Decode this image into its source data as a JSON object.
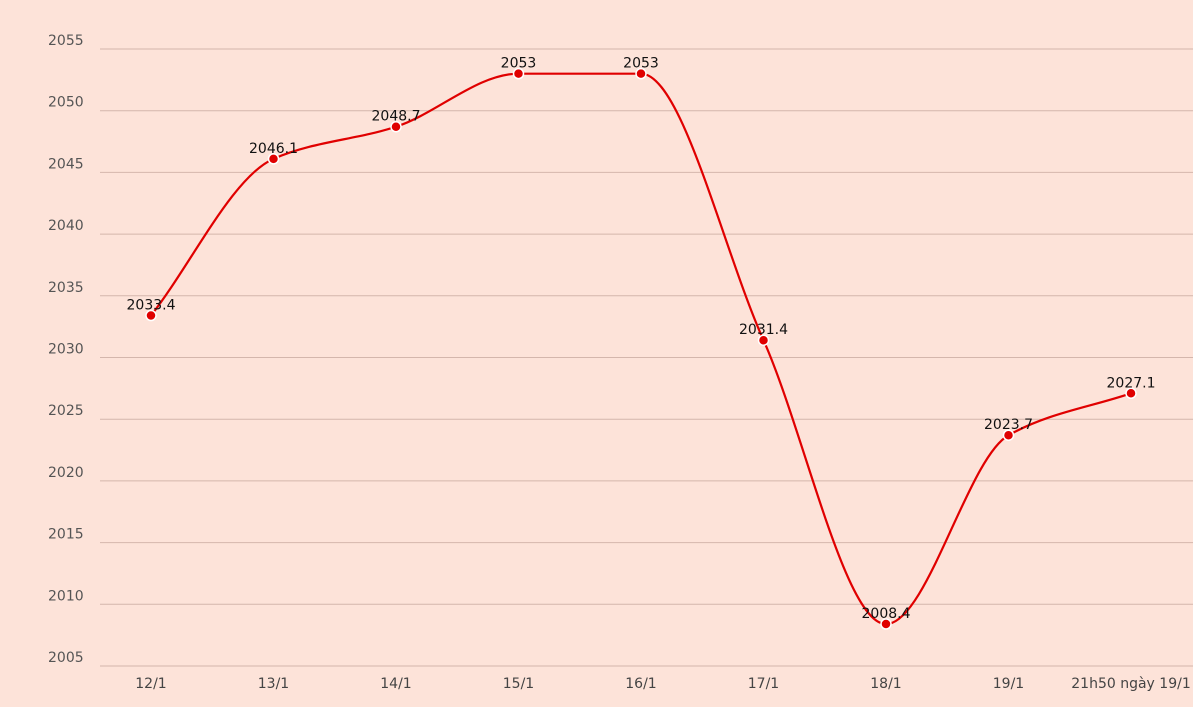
{
  "chart_data": {
    "type": "line",
    "categories": [
      "12/1",
      "13/1",
      "14/1",
      "15/1",
      "16/1",
      "17/1",
      "18/1",
      "19/1",
      "21h50 ngày 19/1"
    ],
    "series": [
      {
        "values": [
          2033.4,
          2046.1,
          2048.7,
          2053,
          2053,
          2031.4,
          2008.4,
          2023.7,
          2027.1
        ],
        "labels": [
          "2033.4",
          "2046.1",
          "2048.7",
          "2053",
          "2053",
          "2031.4",
          "2008.4",
          "2023.7",
          "2027.1"
        ],
        "color": "#e00000"
      }
    ],
    "yticks": [
      "2005",
      "2010",
      "2015",
      "2020",
      "2025",
      "2030",
      "2035",
      "2040",
      "2045",
      "2050",
      "2055"
    ],
    "ylim": [
      2005,
      2055
    ],
    "grid": true,
    "legend": "none",
    "background": "#fde3d9"
  }
}
